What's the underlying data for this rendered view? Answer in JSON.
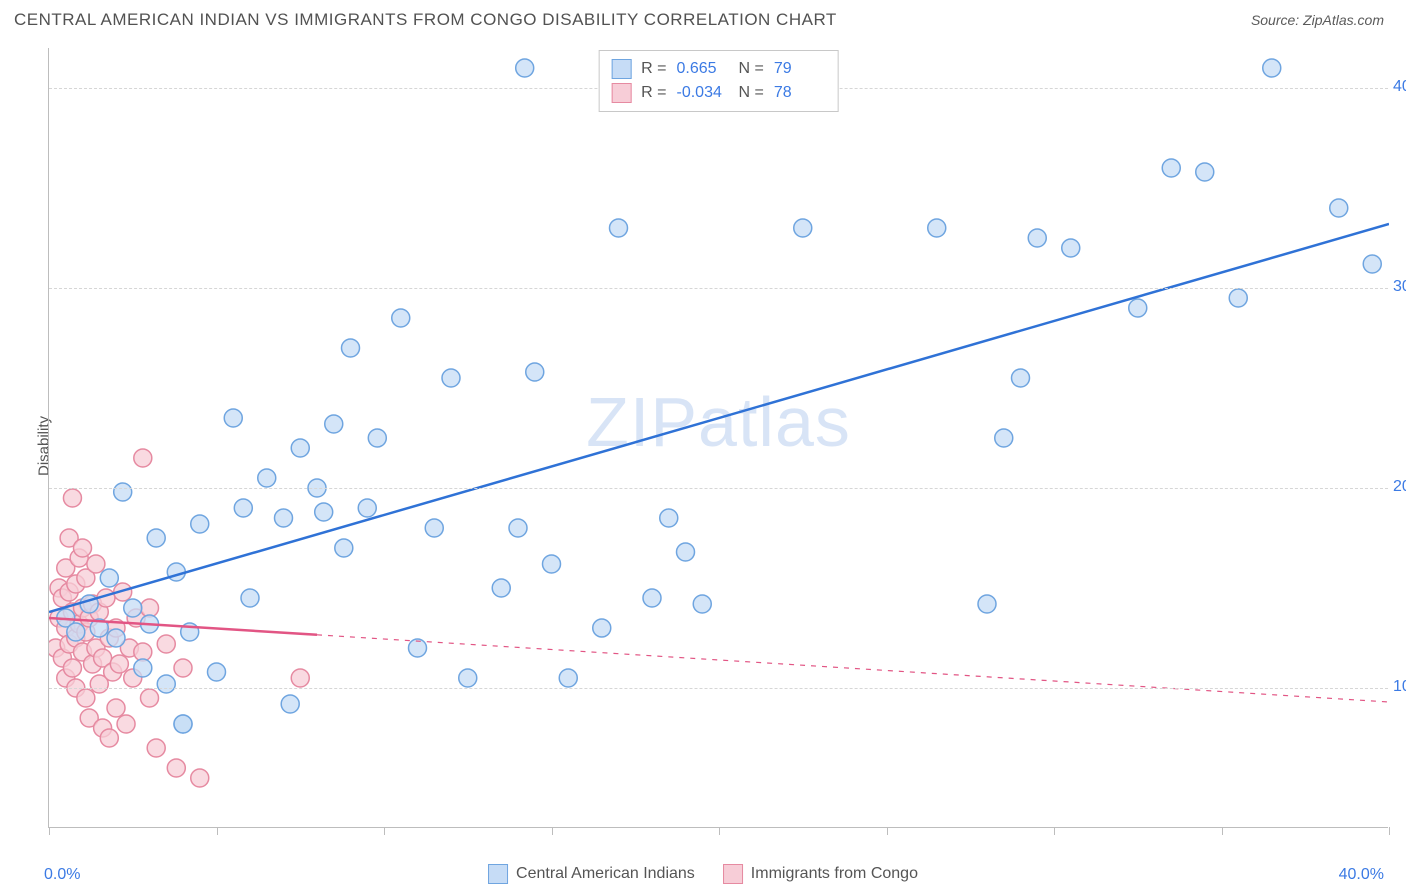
{
  "title": "CENTRAL AMERICAN INDIAN VS IMMIGRANTS FROM CONGO DISABILITY CORRELATION CHART",
  "source_label": "Source:",
  "source_value": "ZipAtlas.com",
  "y_axis_label": "Disability",
  "watermark": "ZIPatlas",
  "chart": {
    "type": "scatter",
    "xlim": [
      0,
      40
    ],
    "ylim": [
      3,
      42
    ],
    "x_ticks": [
      0,
      5,
      10,
      15,
      20,
      25,
      30,
      35,
      40
    ],
    "y_gridlines": [
      10,
      20,
      30,
      40
    ],
    "x_min_label": "0.0%",
    "x_max_label": "40.0%",
    "y_tick_labels": [
      "10.0%",
      "20.0%",
      "30.0%",
      "40.0%"
    ],
    "background_color": "#ffffff",
    "grid_color": "#d6d6d6",
    "axis_color": "#bdbdbd",
    "marker_radius": 9,
    "marker_stroke_width": 1.5,
    "trend_line_width": 2.5,
    "series": [
      {
        "name": "Central American Indians",
        "fill_color": "#c6dcf6",
        "stroke_color": "#6fa5e0",
        "line_color": "#2f72d6",
        "R": "0.665",
        "N": "79",
        "trend": {
          "x1": 0,
          "y1": 13.8,
          "x2": 40,
          "y2": 33.2,
          "dash": false
        },
        "points": [
          [
            0.5,
            13.5
          ],
          [
            0.8,
            12.8
          ],
          [
            1.2,
            14.2
          ],
          [
            1.5,
            13.0
          ],
          [
            1.8,
            15.5
          ],
          [
            2.0,
            12.5
          ],
          [
            2.2,
            19.8
          ],
          [
            2.5,
            14.0
          ],
          [
            2.8,
            11.0
          ],
          [
            3.0,
            13.2
          ],
          [
            3.2,
            17.5
          ],
          [
            3.5,
            10.2
          ],
          [
            3.8,
            15.8
          ],
          [
            4.0,
            8.2
          ],
          [
            4.0,
            8.2
          ],
          [
            4.2,
            12.8
          ],
          [
            4.5,
            18.2
          ],
          [
            5.0,
            10.8
          ],
          [
            5.5,
            23.5
          ],
          [
            5.8,
            19.0
          ],
          [
            6.0,
            14.5
          ],
          [
            6.5,
            20.5
          ],
          [
            7.0,
            18.5
          ],
          [
            7.2,
            9.2
          ],
          [
            7.5,
            22.0
          ],
          [
            8.0,
            20.0
          ],
          [
            8.2,
            18.8
          ],
          [
            8.5,
            23.2
          ],
          [
            8.8,
            17.0
          ],
          [
            9.0,
            27.0
          ],
          [
            9.5,
            19.0
          ],
          [
            9.8,
            22.5
          ],
          [
            10.5,
            28.5
          ],
          [
            11.0,
            12.0
          ],
          [
            11.5,
            18.0
          ],
          [
            12.0,
            25.5
          ],
          [
            12.5,
            10.5
          ],
          [
            13.5,
            15.0
          ],
          [
            14.0,
            18.0
          ],
          [
            14.2,
            41.0
          ],
          [
            14.5,
            25.8
          ],
          [
            15.0,
            16.2
          ],
          [
            15.5,
            10.5
          ],
          [
            16.5,
            13.0
          ],
          [
            17.0,
            33.0
          ],
          [
            18.0,
            14.5
          ],
          [
            18.5,
            18.5
          ],
          [
            19.0,
            16.8
          ],
          [
            19.5,
            14.2
          ],
          [
            22.5,
            33.0
          ],
          [
            26.5,
            33.0
          ],
          [
            28.0,
            14.2
          ],
          [
            28.5,
            22.5
          ],
          [
            29.0,
            25.5
          ],
          [
            29.5,
            32.5
          ],
          [
            30.5,
            32.0
          ],
          [
            32.5,
            29.0
          ],
          [
            33.5,
            36.0
          ],
          [
            34.5,
            35.8
          ],
          [
            35.5,
            29.5
          ],
          [
            36.5,
            41.0
          ],
          [
            38.5,
            34.0
          ],
          [
            39.5,
            31.2
          ]
        ]
      },
      {
        "name": "Immigrants from Congo",
        "fill_color": "#f7cdd7",
        "stroke_color": "#e68aa1",
        "line_color": "#e25584",
        "R": "-0.034",
        "N": "78",
        "trend": {
          "x1": 0,
          "y1": 13.5,
          "x2": 40,
          "y2": 9.3,
          "dash_from_x": 8
        },
        "points": [
          [
            0.2,
            12.0
          ],
          [
            0.3,
            13.5
          ],
          [
            0.3,
            15.0
          ],
          [
            0.4,
            11.5
          ],
          [
            0.4,
            14.5
          ],
          [
            0.5,
            10.5
          ],
          [
            0.5,
            13.0
          ],
          [
            0.5,
            16.0
          ],
          [
            0.6,
            12.2
          ],
          [
            0.6,
            14.8
          ],
          [
            0.6,
            17.5
          ],
          [
            0.7,
            11.0
          ],
          [
            0.7,
            13.8
          ],
          [
            0.7,
            19.5
          ],
          [
            0.8,
            10.0
          ],
          [
            0.8,
            12.5
          ],
          [
            0.8,
            15.2
          ],
          [
            0.9,
            13.2
          ],
          [
            0.9,
            16.5
          ],
          [
            1.0,
            11.8
          ],
          [
            1.0,
            14.0
          ],
          [
            1.0,
            17.0
          ],
          [
            1.1,
            9.5
          ],
          [
            1.1,
            12.8
          ],
          [
            1.1,
            15.5
          ],
          [
            1.2,
            13.5
          ],
          [
            1.2,
            8.5
          ],
          [
            1.3,
            11.2
          ],
          [
            1.3,
            14.2
          ],
          [
            1.4,
            12.0
          ],
          [
            1.4,
            16.2
          ],
          [
            1.5,
            10.2
          ],
          [
            1.5,
            13.8
          ],
          [
            1.6,
            8.0
          ],
          [
            1.6,
            11.5
          ],
          [
            1.7,
            14.5
          ],
          [
            1.8,
            12.5
          ],
          [
            1.8,
            7.5
          ],
          [
            1.9,
            10.8
          ],
          [
            2.0,
            13.0
          ],
          [
            2.0,
            9.0
          ],
          [
            2.1,
            11.2
          ],
          [
            2.2,
            14.8
          ],
          [
            2.3,
            8.2
          ],
          [
            2.4,
            12.0
          ],
          [
            2.5,
            10.5
          ],
          [
            2.6,
            13.5
          ],
          [
            2.8,
            11.8
          ],
          [
            2.8,
            21.5
          ],
          [
            3.0,
            9.5
          ],
          [
            3.0,
            14.0
          ],
          [
            3.2,
            7.0
          ],
          [
            3.5,
            12.2
          ],
          [
            3.8,
            6.0
          ],
          [
            4.0,
            11.0
          ],
          [
            4.5,
            5.5
          ],
          [
            7.5,
            10.5
          ]
        ]
      }
    ]
  },
  "legend_bottom": [
    {
      "label": "Central American Indians",
      "fill": "#c6dcf6",
      "stroke": "#6fa5e0"
    },
    {
      "label": "Immigrants from Congo",
      "fill": "#f7cdd7",
      "stroke": "#e68aa1"
    }
  ]
}
